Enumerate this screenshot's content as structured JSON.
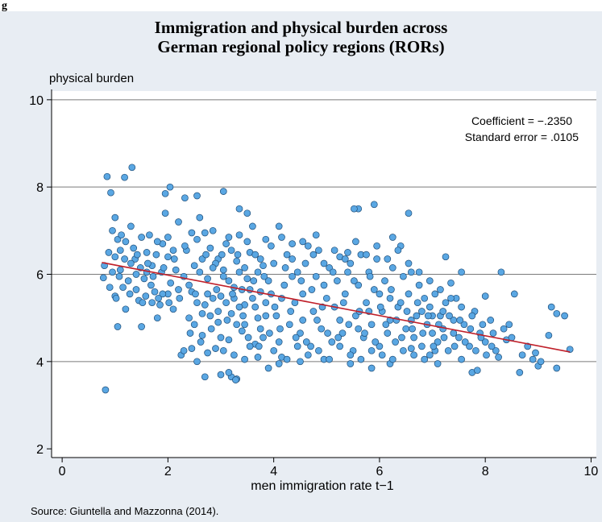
{
  "figure_label": "g",
  "chart_data": {
    "type": "scatter",
    "title": "Immigration and physical burden across German regional policy regions (RORs)",
    "title_lines": [
      "Immigration and physical burden across",
      "German regional policy regions (RORs)"
    ],
    "xlabel": "men immigration rate t−1",
    "ylabel": "physical burden",
    "xlim": [
      -0.2,
      10.1
    ],
    "ylim": [
      1.8,
      10.2
    ],
    "xticks": [
      0,
      2,
      4,
      6,
      8,
      10
    ],
    "yticks": [
      2,
      4,
      6,
      8,
      10
    ],
    "ygrid": [
      4,
      6,
      8,
      10
    ],
    "grid": "horizontal",
    "annotation": [
      "Coefficient = −.2350",
      "Standard error = .0105"
    ],
    "fit_line": {
      "x": [
        0.75,
        9.6
      ],
      "y": [
        6.27,
        4.22
      ]
    },
    "point_color": "#5aa7e3",
    "point_edge": "#1f4e79",
    "line_color": "#c0202a",
    "points": [
      [
        0.82,
        3.35
      ],
      [
        0.85,
        8.24
      ],
      [
        1.18,
        8.22
      ],
      [
        1.32,
        8.45
      ],
      [
        0.92,
        7.87
      ],
      [
        2.04,
        8.0
      ],
      [
        2.32,
        7.75
      ],
      [
        1.95,
        7.85
      ],
      [
        3.05,
        7.9
      ],
      [
        2.55,
        7.8
      ],
      [
        3.5,
        7.4
      ],
      [
        3.35,
        7.5
      ],
      [
        5.9,
        7.6
      ],
      [
        5.6,
        7.5
      ],
      [
        5.52,
        7.5
      ],
      [
        6.55,
        7.4
      ],
      [
        4.1,
        7.1
      ],
      [
        4.35,
        6.7
      ],
      [
        4.8,
        6.9
      ],
      [
        5.25,
        6.4
      ],
      [
        5.4,
        6.5
      ],
      [
        6.25,
        6.85
      ],
      [
        6.4,
        6.65
      ],
      [
        7.25,
        6.4
      ],
      [
        7.55,
        6.05
      ],
      [
        7.35,
        5.8
      ],
      [
        8.0,
        5.5
      ],
      [
        8.3,
        6.05
      ],
      [
        8.55,
        5.55
      ],
      [
        9.25,
        5.25
      ],
      [
        9.35,
        5.1
      ],
      [
        9.5,
        5.05
      ],
      [
        9.6,
        4.28
      ],
      [
        9.35,
        3.85
      ],
      [
        9.0,
        3.9
      ],
      [
        9.2,
        4.6
      ],
      [
        8.65,
        3.75
      ],
      [
        8.4,
        4.5
      ],
      [
        8.25,
        4.1
      ],
      [
        8.8,
        4.35
      ],
      [
        8.95,
        4.2
      ],
      [
        7.75,
        3.75
      ],
      [
        7.85,
        3.8
      ],
      [
        7.55,
        4.05
      ],
      [
        7.1,
        3.95
      ],
      [
        6.95,
        4.15
      ],
      [
        6.6,
        4.3
      ],
      [
        6.2,
        3.95
      ],
      [
        5.85,
        3.85
      ],
      [
        5.45,
        3.95
      ],
      [
        4.95,
        4.05
      ],
      [
        4.5,
        4.0
      ],
      [
        4.15,
        4.1
      ],
      [
        4.1,
        3.95
      ],
      [
        3.9,
        3.85
      ],
      [
        3.7,
        4.1
      ],
      [
        3.45,
        4.05
      ],
      [
        3.3,
        3.6
      ],
      [
        3.2,
        3.65
      ],
      [
        3.15,
        3.75
      ],
      [
        3.28,
        3.58
      ],
      [
        3.0,
        3.7
      ],
      [
        2.7,
        3.65
      ],
      [
        2.25,
        4.15
      ],
      [
        2.3,
        4.25
      ],
      [
        0.78,
        5.92
      ],
      [
        0.8,
        6.2
      ],
      [
        0.88,
        6.5
      ],
      [
        0.95,
        7.0
      ],
      [
        1.0,
        7.3
      ],
      [
        1.05,
        6.8
      ],
      [
        1.1,
        6.1
      ],
      [
        1.15,
        5.7
      ],
      [
        1.2,
        5.2
      ],
      [
        1.05,
        4.8
      ],
      [
        1.0,
        5.5
      ],
      [
        0.9,
        5.7
      ],
      [
        1.3,
        7.1
      ],
      [
        1.35,
        6.6
      ],
      [
        1.4,
        6.0
      ],
      [
        1.45,
        5.4
      ],
      [
        1.5,
        4.8
      ],
      [
        1.55,
        5.9
      ],
      [
        1.6,
        6.5
      ],
      [
        1.65,
        6.9
      ],
      [
        1.7,
        6.2
      ],
      [
        1.75,
        5.6
      ],
      [
        1.8,
        5.0
      ],
      [
        1.85,
        5.3
      ],
      [
        1.9,
        6.7
      ],
      [
        1.95,
        7.4
      ],
      [
        2.0,
        6.4
      ],
      [
        2.05,
        5.8
      ],
      [
        2.1,
        5.2
      ],
      [
        2.15,
        6.1
      ],
      [
        2.2,
        7.2
      ],
      [
        1.0,
        6.4
      ],
      [
        1.12,
        6.9
      ],
      [
        1.25,
        5.85
      ],
      [
        1.38,
        6.35
      ],
      [
        1.48,
        6.15
      ],
      [
        1.58,
        5.5
      ],
      [
        1.68,
        5.75
      ],
      [
        1.78,
        6.45
      ],
      [
        1.88,
        6.05
      ],
      [
        2.0,
        5.55
      ],
      [
        2.4,
        5.0
      ],
      [
        2.45,
        5.6
      ],
      [
        2.5,
        6.2
      ],
      [
        2.55,
        6.8
      ],
      [
        2.6,
        7.3
      ],
      [
        2.65,
        4.6
      ],
      [
        2.7,
        5.3
      ],
      [
        2.75,
        5.9
      ],
      [
        2.8,
        6.6
      ],
      [
        2.85,
        7.0
      ],
      [
        2.9,
        4.3
      ],
      [
        2.95,
        4.9
      ],
      [
        3.0,
        5.5
      ],
      [
        3.05,
        6.1
      ],
      [
        3.1,
        6.7
      ],
      [
        3.15,
        4.5
      ],
      [
        3.2,
        5.1
      ],
      [
        3.25,
        5.7
      ],
      [
        3.3,
        6.3
      ],
      [
        3.35,
        6.9
      ],
      [
        3.4,
        4.7
      ],
      [
        3.45,
        5.3
      ],
      [
        3.5,
        5.9
      ],
      [
        3.55,
        6.5
      ],
      [
        3.6,
        7.1
      ],
      [
        3.65,
        4.4
      ],
      [
        3.7,
        5.0
      ],
      [
        3.75,
        5.6
      ],
      [
        3.8,
        6.2
      ],
      [
        3.85,
        6.8
      ],
      [
        2.45,
        4.3
      ],
      [
        2.55,
        4.0
      ],
      [
        2.65,
        5.1
      ],
      [
        2.75,
        4.2
      ],
      [
        2.85,
        5.45
      ],
      [
        2.95,
        6.35
      ],
      [
        3.05,
        4.25
      ],
      [
        3.15,
        5.85
      ],
      [
        3.25,
        4.15
      ],
      [
        3.35,
        5.25
      ],
      [
        3.45,
        6.15
      ],
      [
        3.55,
        4.35
      ],
      [
        3.65,
        6.45
      ],
      [
        3.75,
        4.75
      ],
      [
        3.85,
        5.35
      ],
      [
        2.4,
        5.75
      ],
      [
        2.5,
        4.85
      ],
      [
        2.6,
        6.05
      ],
      [
        2.7,
        6.95
      ],
      [
        2.8,
        5.05
      ],
      [
        2.9,
        6.25
      ],
      [
        3.0,
        4.55
      ],
      [
        3.1,
        5.35
      ],
      [
        3.2,
        6.55
      ],
      [
        3.3,
        4.85
      ],
      [
        3.4,
        5.65
      ],
      [
        3.5,
        6.75
      ],
      [
        3.6,
        5.45
      ],
      [
        3.7,
        6.05
      ],
      [
        3.8,
        4.55
      ],
      [
        3.9,
        5.85
      ],
      [
        4.0,
        6.25
      ],
      [
        4.05,
        5.05
      ],
      [
        4.1,
        4.45
      ],
      [
        4.2,
        5.75
      ],
      [
        4.25,
        6.45
      ],
      [
        4.3,
        4.85
      ],
      [
        4.4,
        5.35
      ],
      [
        4.45,
        6.05
      ],
      [
        4.5,
        4.65
      ],
      [
        4.55,
        5.55
      ],
      [
        4.6,
        6.25
      ],
      [
        4.7,
        4.35
      ],
      [
        4.75,
        5.15
      ],
      [
        4.8,
        5.95
      ],
      [
        4.85,
        6.55
      ],
      [
        4.9,
        4.75
      ],
      [
        5.0,
        5.45
      ],
      [
        5.05,
        6.15
      ],
      [
        5.1,
        4.45
      ],
      [
        5.15,
        5.25
      ],
      [
        5.2,
        5.85
      ],
      [
        5.3,
        4.65
      ],
      [
        5.35,
        5.55
      ],
      [
        5.45,
        6.25
      ],
      [
        5.5,
        4.25
      ],
      [
        5.55,
        5.05
      ],
      [
        5.6,
        5.75
      ],
      [
        5.65,
        6.45
      ],
      [
        5.7,
        4.55
      ],
      [
        5.75,
        5.35
      ],
      [
        5.8,
        6.05
      ],
      [
        5.85,
        4.85
      ],
      [
        5.9,
        5.65
      ],
      [
        5.95,
        6.35
      ],
      [
        6.0,
        4.35
      ],
      [
        6.05,
        5.15
      ],
      [
        6.1,
        5.85
      ],
      [
        6.15,
        4.65
      ],
      [
        6.2,
        5.45
      ],
      [
        6.25,
        6.15
      ],
      [
        6.3,
        4.45
      ],
      [
        6.35,
        5.25
      ],
      [
        6.45,
        5.95
      ],
      [
        6.5,
        4.75
      ],
      [
        6.55,
        5.55
      ],
      [
        6.6,
        6.05
      ],
      [
        6.65,
        4.55
      ],
      [
        6.7,
        5.05
      ],
      [
        6.75,
        5.75
      ],
      [
        6.8,
        4.35
      ],
      [
        6.85,
        5.45
      ],
      [
        6.9,
        4.85
      ],
      [
        6.95,
        5.25
      ],
      [
        7.0,
        4.65
      ],
      [
        7.05,
        5.55
      ],
      [
        7.1,
        4.45
      ],
      [
        7.15,
        5.05
      ],
      [
        7.2,
        4.75
      ],
      [
        7.25,
        5.35
      ],
      [
        7.3,
        4.25
      ],
      [
        7.4,
        4.95
      ],
      [
        7.45,
        5.45
      ],
      [
        7.5,
        4.55
      ],
      [
        7.6,
        4.85
      ],
      [
        7.7,
        4.35
      ],
      [
        7.8,
        5.15
      ],
      [
        7.9,
        4.65
      ],
      [
        8.0,
        4.45
      ],
      [
        8.1,
        4.95
      ],
      [
        8.2,
        4.25
      ],
      [
        8.35,
        4.75
      ],
      [
        8.5,
        4.55
      ],
      [
        8.7,
        4.15
      ],
      [
        8.9,
        4.05
      ],
      [
        9.05,
        4.0
      ],
      [
        4.0,
        4.25
      ],
      [
        4.15,
        5.45
      ],
      [
        4.35,
        5.95
      ],
      [
        4.55,
        4.95
      ],
      [
        4.65,
        6.65
      ],
      [
        4.95,
        5.75
      ],
      [
        5.25,
        4.95
      ],
      [
        5.4,
        6.05
      ],
      [
        5.6,
        4.75
      ],
      [
        5.8,
        5.15
      ],
      [
        6.0,
        5.55
      ],
      [
        6.2,
        4.95
      ],
      [
        6.4,
        5.35
      ],
      [
        6.6,
        4.95
      ],
      [
        6.8,
        5.15
      ],
      [
        7.0,
        5.05
      ],
      [
        7.2,
        5.15
      ],
      [
        7.4,
        4.65
      ],
      [
        4.25,
        4.05
      ],
      [
        4.45,
        4.35
      ],
      [
        4.65,
        4.15
      ],
      [
        4.85,
        4.25
      ],
      [
        5.05,
        4.05
      ],
      [
        5.25,
        4.35
      ],
      [
        5.45,
        4.15
      ],
      [
        5.65,
        4.05
      ],
      [
        5.85,
        4.25
      ],
      [
        6.05,
        4.15
      ],
      [
        6.25,
        4.05
      ],
      [
        6.45,
        4.25
      ],
      [
        6.65,
        4.15
      ],
      [
        6.85,
        4.05
      ],
      [
        7.05,
        4.25
      ],
      [
        3.95,
        6.65
      ],
      [
        4.15,
        6.85
      ],
      [
        4.35,
        6.35
      ],
      [
        4.55,
        6.75
      ],
      [
        4.75,
        6.45
      ],
      [
        4.95,
        6.25
      ],
      [
        5.15,
        6.55
      ],
      [
        5.35,
        6.35
      ],
      [
        5.55,
        6.75
      ],
      [
        5.75,
        6.45
      ],
      [
        5.95,
        6.65
      ],
      [
        6.15,
        6.35
      ],
      [
        6.35,
        6.55
      ],
      [
        6.55,
        6.25
      ],
      [
        6.75,
        6.05
      ],
      [
        6.95,
        5.85
      ],
      [
        7.15,
        5.65
      ],
      [
        7.35,
        5.45
      ],
      [
        7.55,
        5.25
      ],
      [
        7.75,
        5.05
      ],
      [
        7.95,
        4.85
      ],
      [
        8.15,
        4.65
      ],
      [
        8.45,
        4.85
      ],
      [
        1.1,
        6.55
      ],
      [
        1.2,
        6.75
      ],
      [
        1.3,
        6.25
      ],
      [
        1.4,
        5.65
      ],
      [
        1.5,
        6.85
      ],
      [
        1.6,
        6.05
      ],
      [
        1.7,
        5.35
      ],
      [
        1.8,
        6.75
      ],
      [
        1.9,
        5.55
      ],
      [
        2.0,
        6.85
      ],
      [
        2.1,
        6.55
      ],
      [
        2.2,
        5.65
      ],
      [
        2.3,
        5.95
      ],
      [
        2.35,
        6.55
      ],
      [
        2.45,
        6.95
      ],
      [
        2.55,
        5.35
      ],
      [
        2.65,
        6.35
      ],
      [
        2.75,
        5.55
      ],
      [
        2.85,
        6.15
      ],
      [
        2.95,
        5.15
      ],
      [
        3.05,
        5.95
      ],
      [
        3.15,
        6.85
      ],
      [
        3.25,
        5.45
      ],
      [
        3.35,
        6.05
      ],
      [
        3.45,
        4.85
      ],
      [
        3.55,
        5.65
      ],
      [
        3.65,
        5.25
      ],
      [
        3.75,
        6.35
      ],
      [
        3.85,
        5.05
      ],
      [
        3.95,
        5.55
      ],
      [
        0.95,
        6.05
      ],
      [
        1.02,
        5.45
      ],
      [
        1.08,
        5.95
      ],
      [
        1.18,
        6.35
      ],
      [
        1.28,
        5.55
      ],
      [
        1.42,
        6.45
      ],
      [
        1.52,
        5.35
      ],
      [
        1.62,
        6.25
      ],
      [
        1.72,
        5.95
      ],
      [
        1.82,
        5.45
      ],
      [
        1.92,
        6.15
      ],
      [
        2.02,
        5.35
      ],
      [
        2.12,
        6.35
      ],
      [
        2.22,
        5.45
      ],
      [
        2.32,
        6.65
      ],
      [
        2.42,
        4.65
      ],
      [
        2.52,
        5.55
      ],
      [
        2.62,
        4.45
      ],
      [
        2.72,
        6.45
      ],
      [
        2.82,
        4.75
      ],
      [
        2.92,
        5.65
      ],
      [
        3.02,
        6.45
      ],
      [
        3.12,
        4.95
      ],
      [
        3.22,
        5.55
      ],
      [
        3.32,
        6.45
      ],
      [
        3.42,
        5.05
      ],
      [
        3.52,
        4.55
      ],
      [
        3.62,
        5.85
      ],
      [
        3.72,
        4.35
      ],
      [
        3.82,
        5.95
      ],
      [
        3.92,
        4.65
      ],
      [
        4.02,
        5.25
      ],
      [
        4.12,
        4.75
      ],
      [
        4.22,
        6.15
      ],
      [
        4.32,
        5.15
      ],
      [
        4.42,
        4.55
      ],
      [
        4.52,
        5.85
      ],
      [
        4.62,
        4.45
      ],
      [
        4.72,
        5.65
      ],
      [
        4.82,
        4.95
      ],
      [
        4.92,
        5.25
      ],
      [
        5.02,
        4.65
      ],
      [
        5.12,
        6.05
      ],
      [
        5.22,
        4.55
      ],
      [
        5.32,
        5.35
      ],
      [
        5.42,
        4.85
      ],
      [
        5.52,
        5.85
      ],
      [
        5.62,
        5.15
      ],
      [
        5.72,
        4.65
      ],
      [
        5.82,
        5.95
      ],
      [
        5.92,
        4.45
      ],
      [
        6.02,
        5.25
      ],
      [
        6.12,
        4.85
      ],
      [
        6.22,
        5.65
      ],
      [
        6.32,
        4.95
      ],
      [
        6.42,
        4.55
      ],
      [
        6.52,
        5.15
      ],
      [
        6.62,
        4.75
      ],
      [
        6.72,
        5.35
      ],
      [
        6.82,
        4.65
      ],
      [
        6.92,
        5.05
      ],
      [
        7.02,
        4.35
      ],
      [
        7.12,
        4.85
      ],
      [
        7.22,
        4.55
      ],
      [
        7.32,
        5.05
      ],
      [
        7.42,
        4.35
      ],
      [
        7.52,
        4.95
      ],
      [
        7.62,
        4.45
      ],
      [
        7.72,
        4.75
      ],
      [
        7.82,
        4.25
      ],
      [
        7.92,
        4.55
      ],
      [
        8.02,
        4.15
      ],
      [
        8.12,
        4.35
      ]
    ]
  }
}
